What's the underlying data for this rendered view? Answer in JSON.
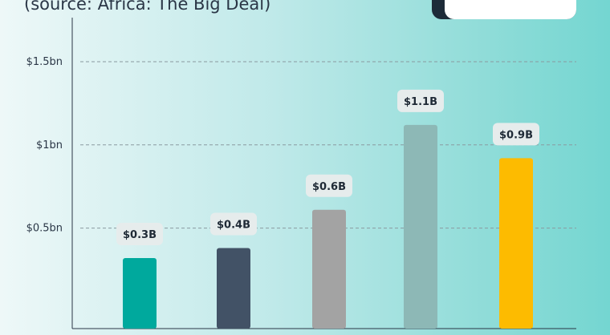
{
  "header": {
    "subtitle": "(source: Africa: The Big Deal)"
  },
  "chart_data": {
    "type": "bar",
    "title": "",
    "subtitle": "(source: Africa: The Big Deal)",
    "xlabel": "",
    "ylabel": "",
    "categories": [
      "",
      "",
      "",
      "",
      ""
    ],
    "values": [
      0.32,
      0.38,
      0.61,
      1.12,
      0.92
    ],
    "data_labels": [
      "$0.3B",
      "$0.4B",
      "$0.6B",
      "$1.1B",
      "$0.9B"
    ],
    "bar_colors": [
      "#00a99d",
      "#425266",
      "#a3a3a3",
      "#8db8b6",
      "#fdbb00"
    ],
    "ylim": [
      0,
      1.5
    ],
    "yticks": [
      {
        "value": 0.5,
        "label": "$0.5bn"
      },
      {
        "value": 1.0,
        "label": "$1bn"
      },
      {
        "value": 1.5,
        "label": "$1.5bn"
      }
    ],
    "grid": true,
    "grid_style": "dashed",
    "legend": false
  }
}
